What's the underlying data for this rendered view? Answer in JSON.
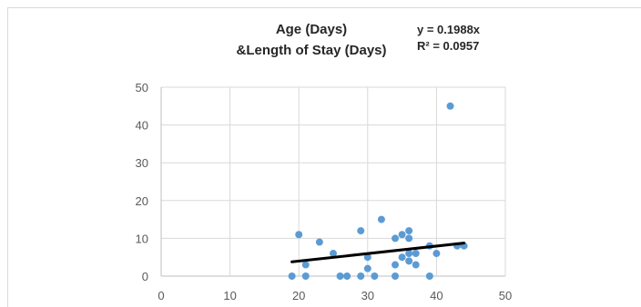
{
  "chart_data": {
    "type": "scatter",
    "title_line1": "Age (Days)",
    "title_line2": "&Length of Stay (Days)",
    "xlabel": "",
    "ylabel": "",
    "xlim": [
      0,
      50
    ],
    "ylim": [
      0,
      50
    ],
    "xticks": [
      "0",
      "10",
      "20",
      "30",
      "40",
      "50"
    ],
    "yticks": [
      "0",
      "10",
      "20",
      "30",
      "40",
      "50"
    ],
    "grid": true,
    "trendline": {
      "equation": "y = 0.1988x",
      "r_squared": "R² = 0.0957",
      "slope": 0.1988,
      "x_range": [
        19,
        44
      ],
      "color": "#000000"
    },
    "marker_color": "#5b9bd5",
    "points": [
      {
        "x": 19,
        "y": 0
      },
      {
        "x": 20,
        "y": 11
      },
      {
        "x": 21,
        "y": 3
      },
      {
        "x": 21,
        "y": 0
      },
      {
        "x": 23,
        "y": 9
      },
      {
        "x": 25,
        "y": 6
      },
      {
        "x": 26,
        "y": 0
      },
      {
        "x": 27,
        "y": 0
      },
      {
        "x": 29,
        "y": 12
      },
      {
        "x": 29,
        "y": 0
      },
      {
        "x": 30,
        "y": 5
      },
      {
        "x": 30,
        "y": 2
      },
      {
        "x": 31,
        "y": 0
      },
      {
        "x": 32,
        "y": 15
      },
      {
        "x": 34,
        "y": 10
      },
      {
        "x": 34,
        "y": 3
      },
      {
        "x": 34,
        "y": 0
      },
      {
        "x": 35,
        "y": 11
      },
      {
        "x": 35,
        "y": 5
      },
      {
        "x": 36,
        "y": 12
      },
      {
        "x": 36,
        "y": 10
      },
      {
        "x": 36,
        "y": 6
      },
      {
        "x": 36,
        "y": 4
      },
      {
        "x": 37,
        "y": 6
      },
      {
        "x": 37,
        "y": 3
      },
      {
        "x": 39,
        "y": 8
      },
      {
        "x": 39,
        "y": 0
      },
      {
        "x": 40,
        "y": 6
      },
      {
        "x": 42,
        "y": 45
      },
      {
        "x": 43,
        "y": 8
      },
      {
        "x": 44,
        "y": 8
      }
    ]
  }
}
